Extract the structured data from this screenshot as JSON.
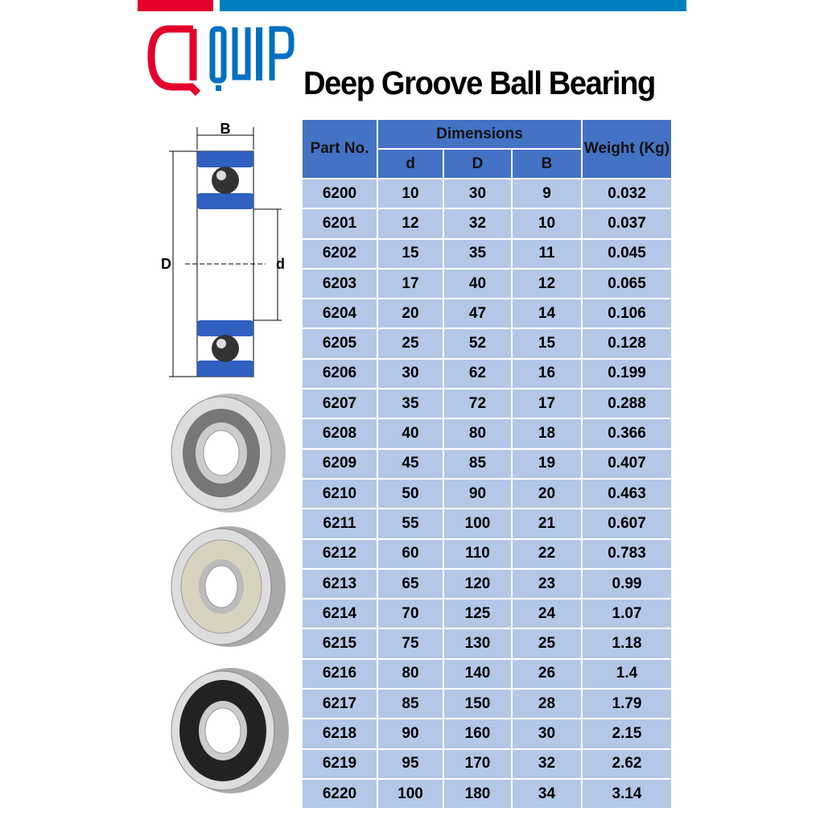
{
  "brand": {
    "logo_text": "QUIP",
    "red": "#e4002b",
    "blue": "#0070c0"
  },
  "title": "Deep Groove Ball Bearing",
  "diagram": {
    "label_B": "B",
    "label_D": "D",
    "label_d": "d"
  },
  "table": {
    "headers": {
      "part": "Part No.",
      "dimensions": "Dimensions",
      "d": "d",
      "D": "D",
      "B": "B",
      "weight": "Weight (Kg)"
    },
    "header_color": "#4472c4",
    "row_color": "#b4c7e7",
    "rows": [
      [
        "6200",
        "10",
        "30",
        "9",
        "0.032"
      ],
      [
        "6201",
        "12",
        "32",
        "10",
        "0.037"
      ],
      [
        "6202",
        "15",
        "35",
        "11",
        "0.045"
      ],
      [
        "6203",
        "17",
        "40",
        "12",
        "0.065"
      ],
      [
        "6204",
        "20",
        "47",
        "14",
        "0.106"
      ],
      [
        "6205",
        "25",
        "52",
        "15",
        "0.128"
      ],
      [
        "6206",
        "30",
        "62",
        "16",
        "0.199"
      ],
      [
        "6207",
        "35",
        "72",
        "17",
        "0.288"
      ],
      [
        "6208",
        "40",
        "80",
        "18",
        "0.366"
      ],
      [
        "6209",
        "45",
        "85",
        "19",
        "0.407"
      ],
      [
        "6210",
        "50",
        "90",
        "20",
        "0.463"
      ],
      [
        "6211",
        "55",
        "100",
        "21",
        "0.607"
      ],
      [
        "6212",
        "60",
        "110",
        "22",
        "0.783"
      ],
      [
        "6213",
        "65",
        "120",
        "23",
        "0.99"
      ],
      [
        "6214",
        "70",
        "125",
        "24",
        "1.07"
      ],
      [
        "6215",
        "75",
        "130",
        "25",
        "1.18"
      ],
      [
        "6216",
        "80",
        "140",
        "26",
        "1.4"
      ],
      [
        "6217",
        "85",
        "150",
        "28",
        "1.79"
      ],
      [
        "6218",
        "90",
        "160",
        "30",
        "2.15"
      ],
      [
        "6219",
        "95",
        "170",
        "32",
        "2.62"
      ],
      [
        "6220",
        "100",
        "180",
        "34",
        "3.14"
      ]
    ]
  }
}
